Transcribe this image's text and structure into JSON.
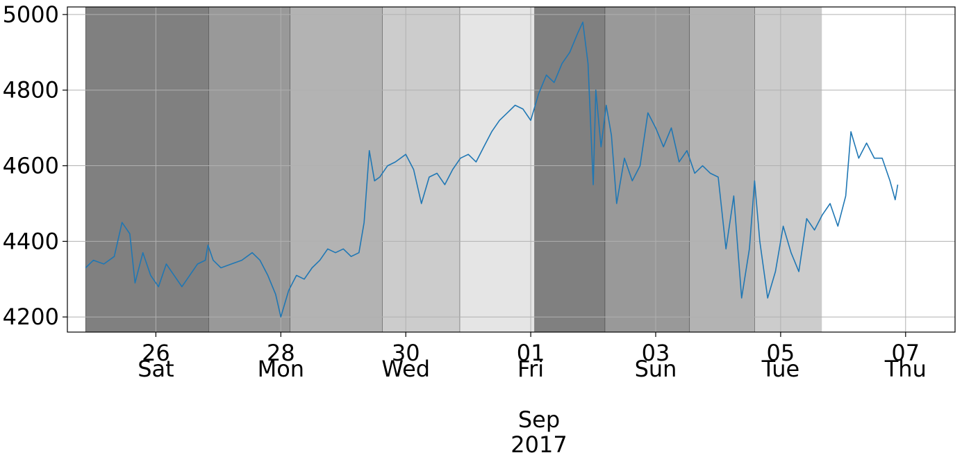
{
  "chart_data": {
    "type": "line",
    "title": "",
    "xlabel": "",
    "ylabel": "",
    "xlim": [
      "2017-08-24T14:00",
      "2017-09-07T19:00"
    ],
    "ylim": [
      4160,
      5020
    ],
    "grid": true,
    "y_ticks": [
      4200,
      4400,
      4600,
      4800,
      5000
    ],
    "x_ticks": [
      {
        "date": "2017-08-26",
        "day": "26",
        "weekday": "Sat"
      },
      {
        "date": "2017-08-28",
        "day": "28",
        "weekday": "Mon"
      },
      {
        "date": "2017-08-30",
        "day": "30",
        "weekday": "Wed"
      },
      {
        "date": "2017-09-01",
        "day": "01",
        "weekday": "Fri"
      },
      {
        "date": "2017-09-03",
        "day": "03",
        "weekday": "Sun"
      },
      {
        "date": "2017-09-05",
        "day": "05",
        "weekday": "Tue"
      },
      {
        "date": "2017-09-07",
        "day": "07",
        "weekday": "Thu"
      }
    ],
    "x_sublabel": [
      "Sep",
      "2017"
    ],
    "shaded_regions": [
      {
        "start": "2017-08-24T21:00",
        "end": "2017-08-26T20:15",
        "color": "#808080"
      },
      {
        "start": "2017-08-26T20:15",
        "end": "2017-08-28T03:30",
        "color": "#999999"
      },
      {
        "start": "2017-08-28T03:30",
        "end": "2017-08-29T15:00",
        "color": "#b3b3b3"
      },
      {
        "start": "2017-08-29T15:00",
        "end": "2017-08-30T20:45",
        "color": "#cccccc"
      },
      {
        "start": "2017-08-30T20:45",
        "end": "2017-09-01T01:30",
        "color": "#e5e5e5"
      },
      {
        "start": "2017-09-01T01:30",
        "end": "2017-09-02T04:30",
        "color": "#808080"
      },
      {
        "start": "2017-09-02T04:30",
        "end": "2017-09-03T13:00",
        "color": "#999999"
      },
      {
        "start": "2017-09-03T13:00",
        "end": "2017-09-04T14:00",
        "color": "#b3b3b3"
      },
      {
        "start": "2017-09-04T14:00",
        "end": "2017-09-05T15:50",
        "color": "#cccccc"
      }
    ],
    "series": [
      {
        "color": "#1f77b4",
        "points": [
          [
            "2017-08-24T21:00",
            4330
          ],
          [
            "2017-08-25T00:00",
            4350
          ],
          [
            "2017-08-25T04:00",
            4340
          ],
          [
            "2017-08-25T08:00",
            4360
          ],
          [
            "2017-08-25T11:00",
            4450
          ],
          [
            "2017-08-25T14:00",
            4420
          ],
          [
            "2017-08-25T16:00",
            4290
          ],
          [
            "2017-08-25T19:00",
            4370
          ],
          [
            "2017-08-25T22:00",
            4310
          ],
          [
            "2017-08-26T01:00",
            4280
          ],
          [
            "2017-08-26T04:00",
            4340
          ],
          [
            "2017-08-26T07:00",
            4310
          ],
          [
            "2017-08-26T10:00",
            4280
          ],
          [
            "2017-08-26T13:00",
            4310
          ],
          [
            "2017-08-26T16:00",
            4340
          ],
          [
            "2017-08-26T19:00",
            4350
          ],
          [
            "2017-08-26T20:00",
            4390
          ],
          [
            "2017-08-26T22:00",
            4350
          ],
          [
            "2017-08-27T01:00",
            4330
          ],
          [
            "2017-08-27T05:00",
            4340
          ],
          [
            "2017-08-27T09:00",
            4350
          ],
          [
            "2017-08-27T13:00",
            4370
          ],
          [
            "2017-08-27T16:00",
            4350
          ],
          [
            "2017-08-27T19:00",
            4310
          ],
          [
            "2017-08-27T22:00",
            4260
          ],
          [
            "2017-08-28T00:00",
            4200
          ],
          [
            "2017-08-28T03:00",
            4270
          ],
          [
            "2017-08-28T06:00",
            4310
          ],
          [
            "2017-08-28T09:00",
            4300
          ],
          [
            "2017-08-28T12:00",
            4330
          ],
          [
            "2017-08-28T15:00",
            4350
          ],
          [
            "2017-08-28T18:00",
            4380
          ],
          [
            "2017-08-28T21:00",
            4370
          ],
          [
            "2017-08-29T00:00",
            4380
          ],
          [
            "2017-08-29T03:00",
            4360
          ],
          [
            "2017-08-29T06:00",
            4370
          ],
          [
            "2017-08-29T08:00",
            4450
          ],
          [
            "2017-08-29T10:00",
            4640
          ],
          [
            "2017-08-29T12:00",
            4560
          ],
          [
            "2017-08-29T14:00",
            4570
          ],
          [
            "2017-08-29T17:00",
            4600
          ],
          [
            "2017-08-29T20:00",
            4610
          ],
          [
            "2017-08-30T00:00",
            4630
          ],
          [
            "2017-08-30T03:00",
            4590
          ],
          [
            "2017-08-30T06:00",
            4500
          ],
          [
            "2017-08-30T09:00",
            4570
          ],
          [
            "2017-08-30T12:00",
            4580
          ],
          [
            "2017-08-30T15:00",
            4550
          ],
          [
            "2017-08-30T18:00",
            4590
          ],
          [
            "2017-08-30T21:00",
            4620
          ],
          [
            "2017-08-31T00:00",
            4630
          ],
          [
            "2017-08-31T03:00",
            4610
          ],
          [
            "2017-08-31T06:00",
            4650
          ],
          [
            "2017-08-31T09:00",
            4690
          ],
          [
            "2017-08-31T12:00",
            4720
          ],
          [
            "2017-08-31T15:00",
            4740
          ],
          [
            "2017-08-31T18:00",
            4760
          ],
          [
            "2017-08-31T21:00",
            4750
          ],
          [
            "2017-09-01T00:00",
            4720
          ],
          [
            "2017-09-01T03:00",
            4790
          ],
          [
            "2017-09-01T06:00",
            4840
          ],
          [
            "2017-09-01T09:00",
            4820
          ],
          [
            "2017-09-01T12:00",
            4870
          ],
          [
            "2017-09-01T15:00",
            4900
          ],
          [
            "2017-09-01T18:00",
            4950
          ],
          [
            "2017-09-01T20:00",
            4980
          ],
          [
            "2017-09-01T22:00",
            4870
          ],
          [
            "2017-09-02T00:00",
            4550
          ],
          [
            "2017-09-02T01:00",
            4800
          ],
          [
            "2017-09-02T03:00",
            4650
          ],
          [
            "2017-09-02T05:00",
            4760
          ],
          [
            "2017-09-02T07:00",
            4680
          ],
          [
            "2017-09-02T09:00",
            4500
          ],
          [
            "2017-09-02T12:00",
            4620
          ],
          [
            "2017-09-02T15:00",
            4560
          ],
          [
            "2017-09-02T18:00",
            4600
          ],
          [
            "2017-09-02T21:00",
            4740
          ],
          [
            "2017-09-03T00:00",
            4700
          ],
          [
            "2017-09-03T03:00",
            4650
          ],
          [
            "2017-09-03T06:00",
            4700
          ],
          [
            "2017-09-03T09:00",
            4610
          ],
          [
            "2017-09-03T12:00",
            4640
          ],
          [
            "2017-09-03T15:00",
            4580
          ],
          [
            "2017-09-03T18:00",
            4600
          ],
          [
            "2017-09-03T21:00",
            4580
          ],
          [
            "2017-09-04T00:00",
            4570
          ],
          [
            "2017-09-04T03:00",
            4380
          ],
          [
            "2017-09-04T06:00",
            4520
          ],
          [
            "2017-09-04T09:00",
            4250
          ],
          [
            "2017-09-04T12:00",
            4380
          ],
          [
            "2017-09-04T14:00",
            4560
          ],
          [
            "2017-09-04T16:00",
            4400
          ],
          [
            "2017-09-04T19:00",
            4250
          ],
          [
            "2017-09-04T22:00",
            4320
          ],
          [
            "2017-09-05T01:00",
            4440
          ],
          [
            "2017-09-05T04:00",
            4370
          ],
          [
            "2017-09-05T07:00",
            4320
          ],
          [
            "2017-09-05T10:00",
            4460
          ],
          [
            "2017-09-05T13:00",
            4430
          ],
          [
            "2017-09-05T16:00",
            4470
          ],
          [
            "2017-09-05T19:00",
            4500
          ],
          [
            "2017-09-05T22:00",
            4440
          ],
          [
            "2017-09-06T01:00",
            4520
          ],
          [
            "2017-09-06T03:00",
            4690
          ],
          [
            "2017-09-06T06:00",
            4620
          ],
          [
            "2017-09-06T09:00",
            4660
          ],
          [
            "2017-09-06T12:00",
            4620
          ],
          [
            "2017-09-06T15:00",
            4620
          ],
          [
            "2017-09-06T18:00",
            4560
          ],
          [
            "2017-09-06T20:00",
            4510
          ],
          [
            "2017-09-06T21:00",
            4550
          ]
        ]
      }
    ]
  }
}
